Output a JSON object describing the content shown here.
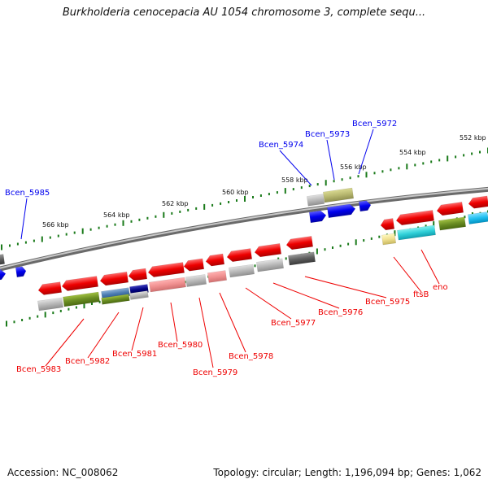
{
  "title": "Burkholderia cenocepacia AU 1054 chromosome 3, complete sequ...",
  "footer": {
    "accession": "Accession: NC_008062",
    "topology": "Topology: circular; Length: 1,196,094 bp; Genes: 1,062"
  },
  "colors": {
    "forward_strand": "#0000ee",
    "reverse_strand": "#ee0000",
    "backbone": "#8a8a8a",
    "tick": "#1a7a1a"
  },
  "scale_labels": [
    {
      "text": "566 kbp"
    },
    {
      "text": "564 kbp"
    },
    {
      "text": "562 kbp"
    },
    {
      "text": "560 kbp"
    },
    {
      "text": "558 kbp"
    },
    {
      "text": "556 kbp"
    },
    {
      "text": "554 kbp"
    },
    {
      "text": "552 kbp"
    }
  ],
  "forward_genes": [
    {
      "name": "Bcen_5985"
    },
    {
      "name": "Bcen_5974"
    },
    {
      "name": "Bcen_5973"
    },
    {
      "name": "Bcen_5972"
    }
  ],
  "reverse_genes": [
    {
      "name": "Bcen_5983"
    },
    {
      "name": "Bcen_5982"
    },
    {
      "name": "Bcen_5981"
    },
    {
      "name": "Bcen_5980"
    },
    {
      "name": "Bcen_5979"
    },
    {
      "name": "Bcen_5978"
    },
    {
      "name": "Bcen_5977"
    },
    {
      "name": "Bcen_5976"
    },
    {
      "name": "Bcen_5975"
    },
    {
      "name": "ftsB"
    },
    {
      "name": "eno"
    }
  ]
}
